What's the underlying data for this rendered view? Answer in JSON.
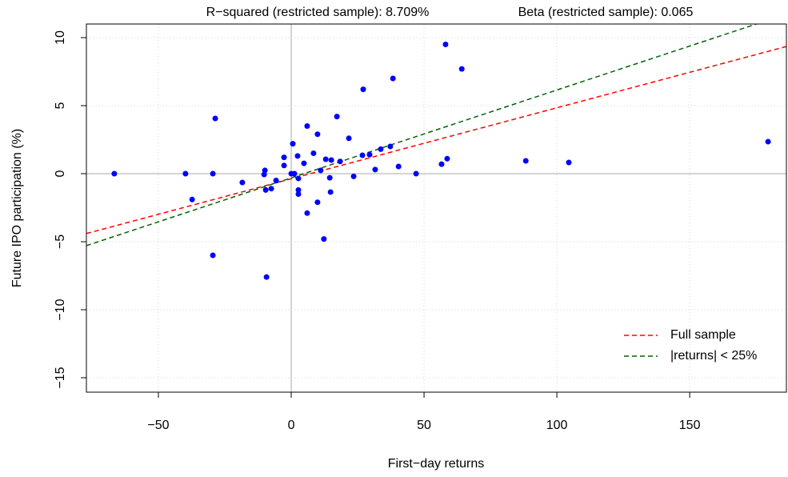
{
  "chart_data": {
    "type": "scatter",
    "annotations": [
      "R−squared (restricted sample): 8.709%",
      "Beta (restricted sample): 0.065"
    ],
    "x_label": "First−day returns",
    "y_label": "Future IPO participation (%)",
    "xlim": [
      -77.1,
      186.4
    ],
    "ylim": [
      -16.06,
      11.0
    ],
    "xticks": [
      {
        "value": -50,
        "label": "−50"
      },
      0,
      50,
      100,
      150
    ],
    "yticks": [
      {
        "value": -15,
        "label": "−15"
      },
      {
        "value": -10,
        "label": "−10"
      },
      {
        "value": -5,
        "label": "−5"
      },
      0,
      5,
      10
    ],
    "grid": true,
    "legend": "bottom-right",
    "points": {
      "color": "#0000ff",
      "x": [
        -66.6,
        -39.8,
        -29.5,
        -28.6,
        -37.3,
        -29.5,
        -18.4,
        -9.9,
        -10.2,
        -9.6,
        -7.5,
        -5.7,
        -9.3,
        -2.7,
        -2.7,
        0.6,
        0,
        1.2,
        2.4,
        2.7,
        2.7,
        2.7,
        4.8,
        6.0,
        6.0,
        8.4,
        9.9,
        9.9,
        11.1,
        12.3,
        13.0,
        14.5,
        15.1,
        14.8,
        17.2,
        18.4,
        21.7,
        23.5,
        26.8,
        27.1,
        29.5,
        31.6,
        33.7,
        37.3,
        38.3,
        40.4,
        47.0,
        56.6,
        58.7,
        58.1,
        64.2,
        88.3,
        104.5,
        179.5
      ],
      "values": [
        0,
        0,
        0,
        4.06,
        -1.9,
        -6.0,
        -0.65,
        0.24,
        -0.06,
        -1.2,
        -1.1,
        -0.5,
        -7.6,
        1.2,
        0.6,
        2.2,
        0,
        0,
        1.3,
        -0.35,
        -1.2,
        -1.5,
        0.76,
        3.5,
        -2.9,
        1.5,
        2.9,
        -2.1,
        0.24,
        -4.8,
        1.06,
        -0.3,
        1.0,
        -1.35,
        4.2,
        0.9,
        2.6,
        -0.2,
        1.35,
        6.2,
        1.4,
        0.3,
        1.8,
        2.0,
        7.0,
        0.53,
        0,
        0.7,
        1.1,
        9.5,
        7.7,
        0.94,
        0.82,
        2.35
      ]
    },
    "series": [
      {
        "name": "Full sample",
        "color": "#ff0000",
        "type": "line",
        "x": [
          -77.1,
          186.4
        ],
        "values": [
          -4.4,
          9.35
        ]
      },
      {
        "name": "|returns| < 25%",
        "color": "#006400",
        "type": "line",
        "x": [
          -77.1,
          186.4
        ],
        "values": [
          -5.29,
          11.73
        ]
      }
    ]
  }
}
